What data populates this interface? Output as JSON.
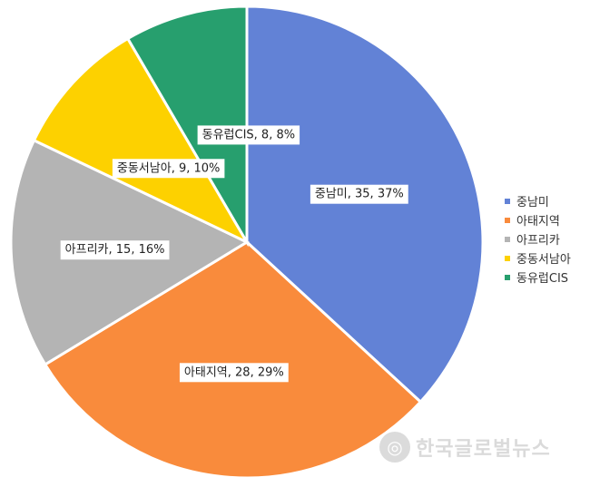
{
  "chart_data": {
    "type": "pie",
    "slices": [
      {
        "name": "중남미",
        "value": 35,
        "percent": 37,
        "label": "중남미, 35, 37%",
        "color": "#6282d6"
      },
      {
        "name": "아태지역",
        "value": 28,
        "percent": 29,
        "label": "아태지역, 28, 29%",
        "color": "#f98b3c"
      },
      {
        "name": "아프리카",
        "value": 15,
        "percent": 16,
        "label": "아프리카, 15, 16%",
        "color": "#b4b4b4"
      },
      {
        "name": "중동서남아",
        "value": 9,
        "percent": 10,
        "label": "중동서남아, 9, 10%",
        "color": "#fdd100"
      },
      {
        "name": "동유럽CIS",
        "value": 8,
        "percent": 8,
        "label": "동유럽CIS, 8, 8%",
        "color": "#279f6e"
      }
    ],
    "legend": {
      "position": "right",
      "items": [
        "중남미",
        "아태지역",
        "아프리카",
        "중동서남아",
        "동유럽CIS"
      ]
    }
  },
  "watermark": {
    "text": "한국글로벌뉴스",
    "icon": "globe-icon"
  }
}
